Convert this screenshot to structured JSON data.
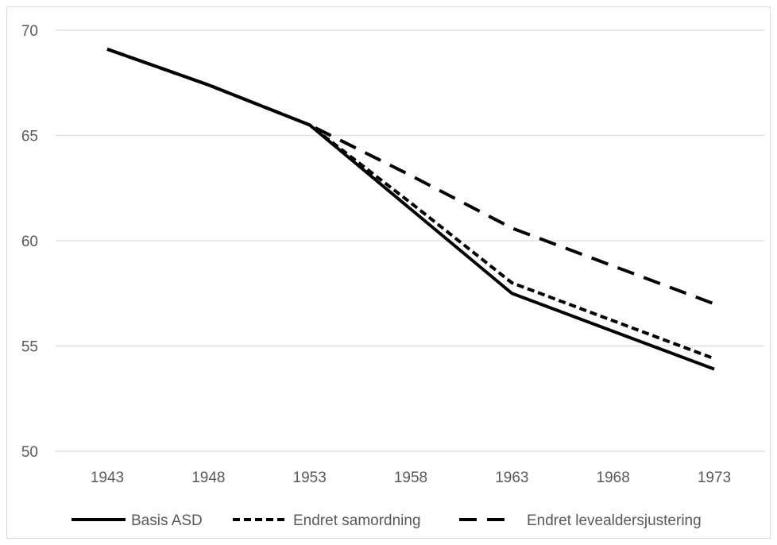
{
  "chart_data": {
    "type": "line",
    "title": "",
    "xlabel": "",
    "ylabel": "",
    "x": [
      "1943",
      "1948",
      "1953",
      "1958",
      "1963",
      "1968",
      "1973"
    ],
    "ylim": [
      50,
      70
    ],
    "yticks": [
      50,
      55,
      60,
      65,
      70
    ],
    "grid": true,
    "legend_position": "bottom",
    "series": [
      {
        "name": "Basis ASD",
        "style": "solid",
        "color": "#000000",
        "values": [
          69.1,
          67.4,
          65.5,
          61.5,
          57.5,
          55.7,
          53.9
        ]
      },
      {
        "name": "Endret samordning",
        "style": "dotted",
        "color": "#000000",
        "values": [
          69.1,
          67.4,
          65.5,
          61.8,
          58.0,
          56.2,
          54.4
        ]
      },
      {
        "name": "Endret levealdersjustering",
        "style": "dashed",
        "color": "#000000",
        "values": [
          69.1,
          67.4,
          65.5,
          63.1,
          60.6,
          58.8,
          57.0
        ]
      }
    ]
  }
}
